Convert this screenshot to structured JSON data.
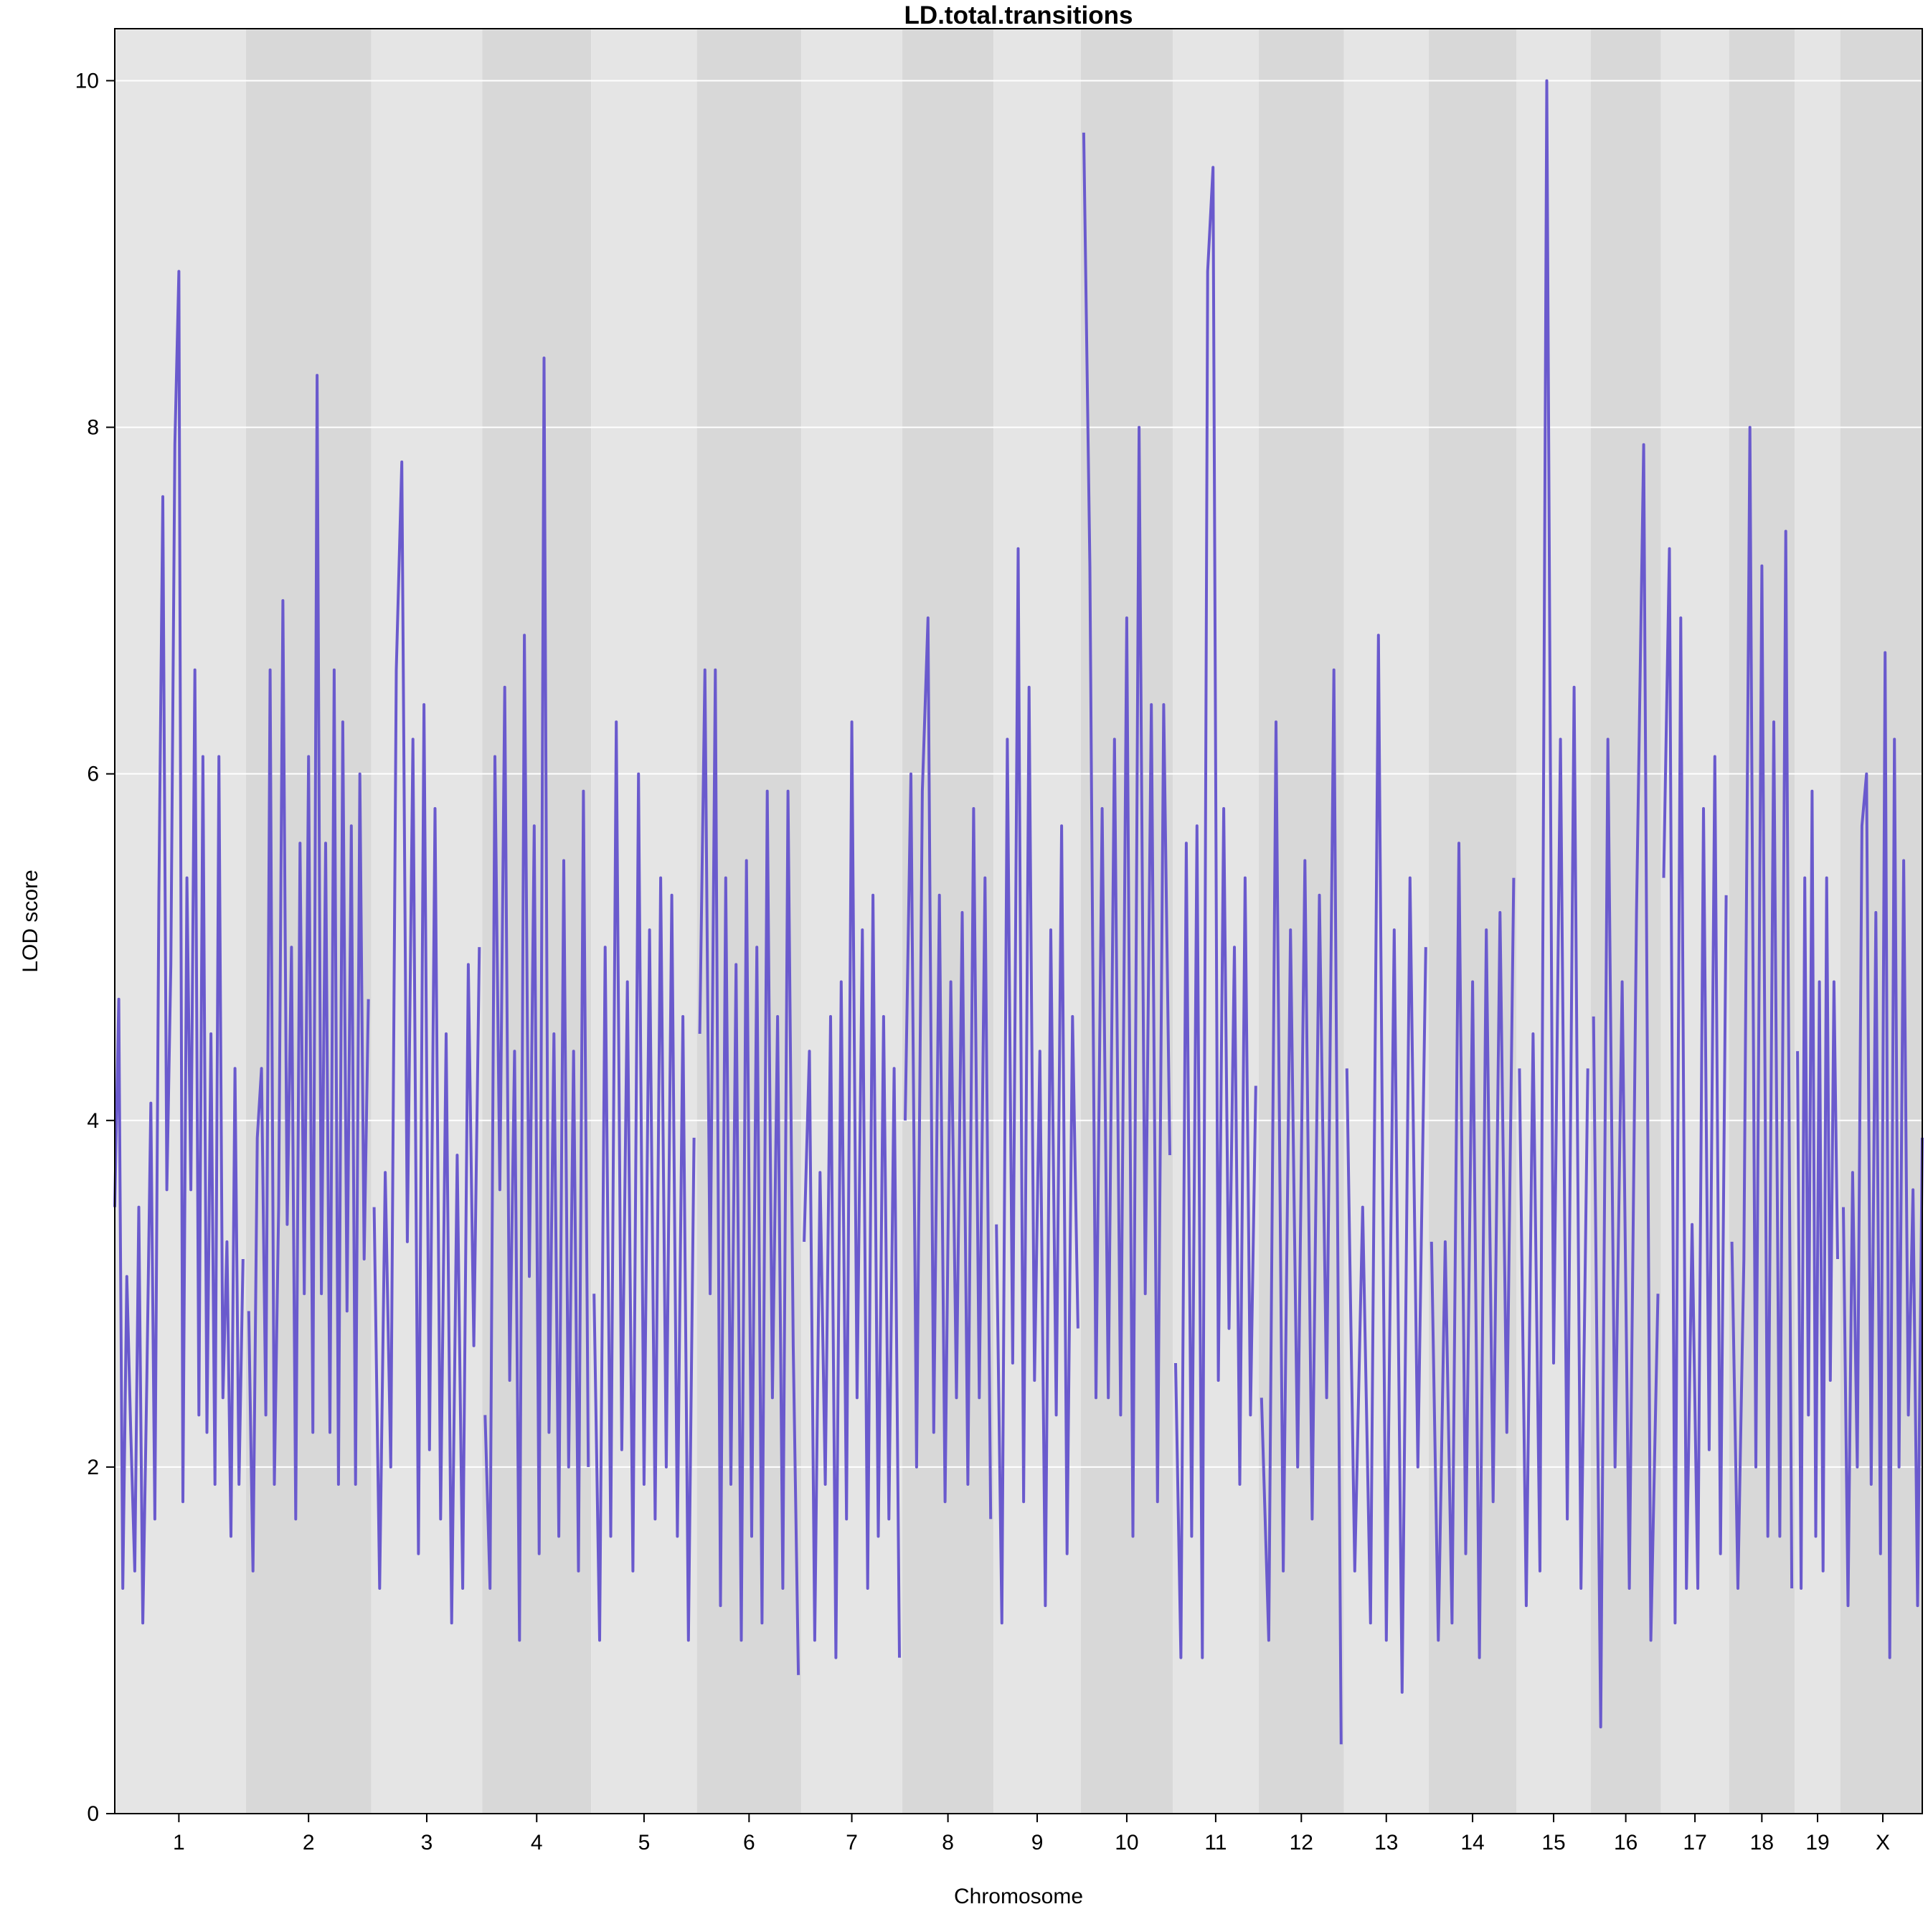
{
  "chart_data": {
    "type": "line",
    "title": "LD.total.transitions",
    "xlabel": "Chromosome",
    "ylabel": "LOD score",
    "ylim": [
      0,
      10.3
    ],
    "yticks": [
      0,
      2,
      4,
      6,
      8,
      10
    ],
    "grid": true,
    "series": [
      {
        "color": "#6A5ACD",
        "chromosomes": [
          {
            "name": "1",
            "length": 195,
            "values": [
              3.5,
              4.7,
              1.3,
              3.1,
              2.2,
              1.4,
              3.5,
              1.1,
              2.5,
              4.1,
              1.7,
              5.3,
              7.6,
              3.6,
              4.9,
              7.9,
              8.9,
              1.8,
              5.4,
              3.6,
              6.6,
              2.3,
              6.1,
              2.2,
              4.5,
              1.9,
              6.1,
              2.4,
              3.3,
              1.6,
              4.3,
              1.9,
              3.2
            ]
          },
          {
            "name": "2",
            "length": 182,
            "values": [
              2.9,
              1.4,
              3.9,
              4.3,
              2.3,
              6.6,
              1.9,
              3.5,
              7.0,
              3.4,
              5.0,
              1.7,
              5.6,
              3.0,
              6.1,
              2.2,
              8.3,
              3.0,
              5.6,
              2.2,
              6.6,
              1.9,
              6.3,
              2.9,
              5.7,
              1.9,
              6.0,
              3.2,
              4.7
            ]
          },
          {
            "name": "3",
            "length": 160,
            "values": [
              3.5,
              1.3,
              3.7,
              2.0,
              6.6,
              7.8,
              3.3,
              6.2,
              1.5,
              6.4,
              2.1,
              5.8,
              1.7,
              4.5,
              1.1,
              3.8,
              1.3,
              4.9,
              2.7,
              5.0
            ]
          },
          {
            "name": "4",
            "length": 157,
            "values": [
              2.3,
              1.3,
              6.1,
              3.6,
              6.5,
              2.5,
              4.4,
              1.0,
              6.8,
              3.1,
              5.7,
              1.5,
              8.4,
              2.2,
              4.5,
              1.6,
              5.5,
              2.0,
              4.4,
              1.4,
              5.9,
              2.0
            ]
          },
          {
            "name": "5",
            "length": 152,
            "values": [
              3.0,
              1.0,
              5.0,
              1.6,
              6.3,
              2.1,
              4.8,
              1.4,
              6.0,
              1.9,
              5.1,
              1.7,
              5.4,
              2.0,
              5.3,
              1.6,
              4.6,
              1.0,
              3.9
            ]
          },
          {
            "name": "6",
            "length": 150,
            "values": [
              4.5,
              6.6,
              3.0,
              6.6,
              1.2,
              5.4,
              1.9,
              4.9,
              1.0,
              5.5,
              1.6,
              5.0,
              1.1,
              5.9,
              2.4,
              4.6,
              1.3,
              5.9,
              2.7,
              0.8
            ]
          },
          {
            "name": "7",
            "length": 145,
            "values": [
              3.3,
              4.4,
              1.0,
              3.7,
              1.9,
              4.6,
              0.9,
              4.8,
              1.7,
              6.3,
              2.4,
              5.1,
              1.3,
              5.3,
              1.6,
              4.6,
              1.7,
              4.3,
              0.9
            ]
          },
          {
            "name": "8",
            "length": 130,
            "values": [
              4.0,
              6.0,
              2.0,
              5.9,
              6.9,
              2.2,
              5.3,
              1.8,
              4.8,
              2.4,
              5.2,
              1.9,
              5.8,
              2.4,
              5.4,
              1.7
            ]
          },
          {
            "name": "9",
            "length": 124,
            "values": [
              3.4,
              1.1,
              6.2,
              2.6,
              7.3,
              1.8,
              6.5,
              2.5,
              4.4,
              1.2,
              5.1,
              2.3,
              5.7,
              1.5,
              4.6,
              2.8
            ]
          },
          {
            "name": "10",
            "length": 131,
            "values": [
              9.7,
              7.2,
              2.4,
              5.8,
              2.4,
              6.2,
              2.3,
              6.9,
              1.6,
              8.0,
              3.0,
              6.4,
              1.8,
              6.4,
              3.8
            ]
          },
          {
            "name": "11",
            "length": 122,
            "values": [
              2.6,
              0.9,
              5.6,
              1.6,
              5.7,
              0.9,
              8.9,
              9.5,
              2.5,
              5.8,
              2.8,
              5.0,
              1.9,
              5.4,
              2.3,
              4.2
            ]
          },
          {
            "name": "12",
            "length": 121,
            "values": [
              2.4,
              1.0,
              6.3,
              1.4,
              5.1,
              2.0,
              5.5,
              1.7,
              5.3,
              2.4,
              6.6,
              0.4
            ]
          },
          {
            "name": "13",
            "length": 120,
            "values": [
              4.3,
              1.4,
              3.5,
              1.1,
              6.8,
              1.0,
              5.1,
              0.7,
              5.4,
              2.0,
              5.0
            ]
          },
          {
            "name": "14",
            "length": 125,
            "values": [
              3.3,
              1.0,
              3.3,
              1.1,
              5.6,
              1.5,
              4.8,
              0.9,
              5.1,
              1.8,
              5.2,
              2.2,
              5.4
            ]
          },
          {
            "name": "15",
            "length": 104,
            "values": [
              4.3,
              1.2,
              4.5,
              1.4,
              10.0,
              2.6,
              6.2,
              1.7,
              6.5,
              1.3,
              4.3
            ]
          },
          {
            "name": "16",
            "length": 98,
            "values": [
              4.6,
              0.5,
              6.2,
              2.0,
              4.8,
              1.3,
              5.2,
              7.9,
              1.0,
              3.0
            ]
          },
          {
            "name": "17",
            "length": 95,
            "values": [
              5.4,
              7.3,
              1.1,
              6.9,
              1.3,
              3.4,
              1.3,
              5.8,
              2.1,
              6.1,
              1.5,
              5.3
            ]
          },
          {
            "name": "18",
            "length": 91,
            "values": [
              3.3,
              1.3,
              3.2,
              8.0,
              2.0,
              7.2,
              1.6,
              6.3,
              1.6,
              7.4,
              1.3
            ]
          },
          {
            "name": "19",
            "length": 61,
            "values": [
              4.4,
              1.3,
              5.4,
              2.3,
              5.9,
              1.6,
              4.8,
              1.4,
              5.4,
              2.5,
              4.8,
              3.2
            ]
          },
          {
            "name": "X",
            "length": 120,
            "values": [
              3.5,
              1.2,
              3.7,
              2.0,
              5.7,
              6.0,
              1.9,
              5.2,
              1.5,
              6.7,
              0.9,
              6.2,
              2.0,
              5.5,
              2.3,
              3.6,
              1.2,
              3.9
            ]
          }
        ]
      }
    ]
  }
}
